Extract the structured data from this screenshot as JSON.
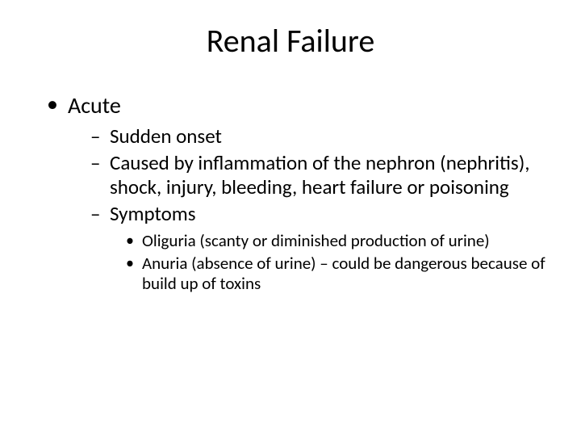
{
  "title": "Renal Failure",
  "bullets": {
    "l1_0": "Acute",
    "l2_0": "Sudden onset",
    "l2_1": "Caused by inflammation of the nephron (nephritis), shock, injury, bleeding, heart failure or poisoning",
    "l2_2": "Symptoms",
    "l3_0": "Oliguria (scanty or diminished production of urine)",
    "l3_1": "Anuria (absence of urine) – could be dangerous because of build up of toxins"
  },
  "style": {
    "background": "#ffffff",
    "text_color": "#000000",
    "title_fontsize": 40,
    "l1_fontsize": 28,
    "l2_fontsize": 25,
    "l3_fontsize": 21,
    "font_family": "Calibri"
  }
}
